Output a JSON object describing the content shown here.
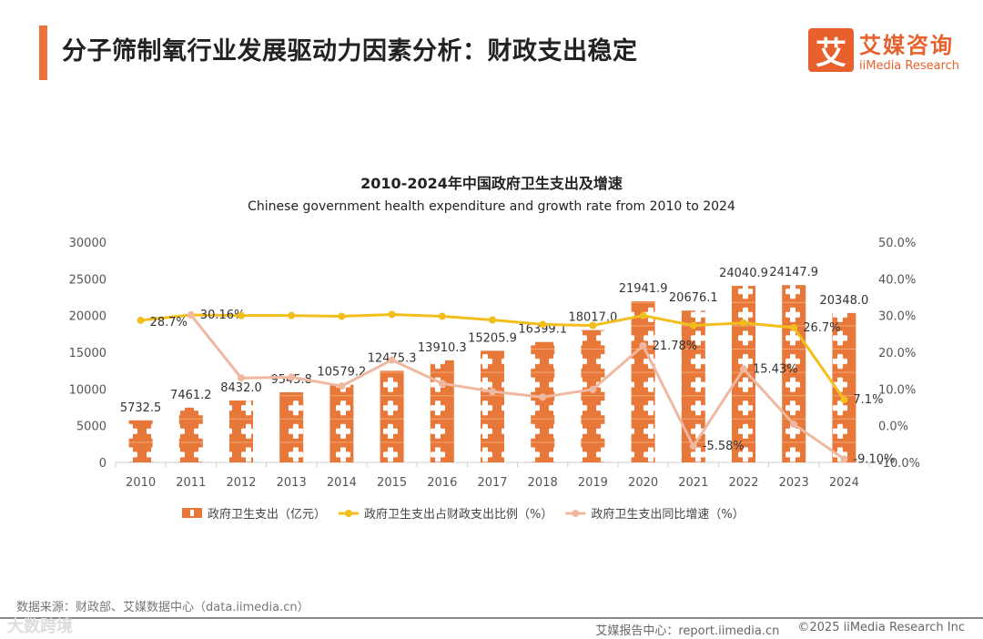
{
  "header": {
    "title": "分子筛制氧行业发展驱动力因素分析：财政支出稳定",
    "logo_mark": "艾",
    "logo_cn": "艾媒咨询",
    "logo_en": "iiMedia Research"
  },
  "chart_data": {
    "type": "bar+line",
    "title": "2010-2024年中国政府卫生支出及增速",
    "subtitle": "Chinese government health expenditure and growth rate from 2010 to 2024",
    "categories": [
      "2010",
      "2011",
      "2012",
      "2013",
      "2014",
      "2015",
      "2016",
      "2017",
      "2018",
      "2019",
      "2020",
      "2021",
      "2022",
      "2023",
      "2024"
    ],
    "y_left": {
      "range": [
        0,
        30000
      ],
      "ticks": [
        "0",
        "5000",
        "10000",
        "15000",
        "20000",
        "25000",
        "30000"
      ]
    },
    "y_right": {
      "range": [
        -10,
        50
      ],
      "ticks": [
        "-10.0%",
        "0.0%",
        "10.0%",
        "20.0%",
        "30.0%",
        "40.0%",
        "50.0%"
      ]
    },
    "series": [
      {
        "name": "政府卫生支出（亿元）",
        "type": "bar",
        "color": "#e8773a",
        "values": [
          5732.5,
          7461.2,
          8432.0,
          9545.8,
          10579.2,
          12475.3,
          13910.3,
          15205.9,
          16399.1,
          18017.0,
          21941.9,
          20676.1,
          24040.9,
          24147.9,
          20348.0
        ],
        "labels": [
          "5732.5",
          "7461.2",
          "8432.0",
          "9545.8",
          "10579.2",
          "12475.3",
          "13910.3",
          "15205.9",
          "16399.1",
          "18017.0",
          "21941.9",
          "20676.1",
          "24040.9",
          "24147.9",
          "20348.0"
        ]
      },
      {
        "name": "政府卫生支出占财政支出比例（%）",
        "type": "line",
        "color": "#f2be1c",
        "values": [
          28.7,
          30.16,
          30.0,
          30.0,
          29.8,
          30.3,
          29.8,
          28.8,
          27.6,
          27.3,
          30.0,
          27.3,
          28.0,
          26.7,
          7.1
        ],
        "labels": {
          "0": "28.7%",
          "1": "30.16%",
          "13": "26.7%",
          "14": "7.1%"
        }
      },
      {
        "name": "政府卫生支出同比增速（%）",
        "type": "line",
        "color": "#f0b8a0",
        "values": [
          null,
          30.16,
          13.0,
          13.2,
          10.8,
          17.9,
          11.5,
          9.3,
          7.8,
          9.9,
          21.78,
          -5.58,
          15.43,
          0.4,
          -9.1
        ],
        "labels": {
          "10": "21.78%",
          "11": "-5.58%",
          "12": "15.43%",
          "14": "-9.10%"
        }
      }
    ],
    "legend": "bottom"
  },
  "footer": {
    "source": "数据来源：财政部、艾媒数据中心（data.iimedia.cn）",
    "report": "艾媒报告中心：report.iimedia.cn",
    "copyright": "©2025  iiMedia Research Inc",
    "watermark": "大数跨境"
  }
}
